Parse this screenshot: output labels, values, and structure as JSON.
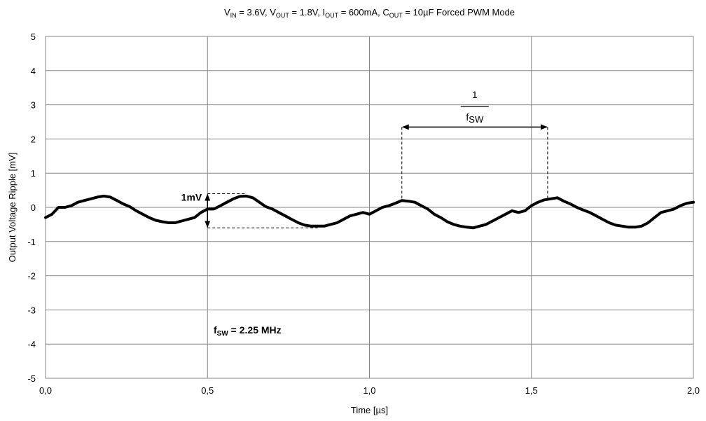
{
  "chart_data": {
    "type": "line",
    "title_parts": [
      {
        "text": "V",
        "sub": false
      },
      {
        "text": "IN",
        "sub": true
      },
      {
        "text": " = 3.6V, V",
        "sub": false
      },
      {
        "text": "OUT",
        "sub": true
      },
      {
        "text": " = 1.8V, I",
        "sub": false
      },
      {
        "text": "OUT",
        "sub": true
      },
      {
        "text": " = 600mA, C",
        "sub": false
      },
      {
        "text": "OUT",
        "sub": true
      },
      {
        "text": " = 10µF  Forced PWM Mode",
        "sub": false
      }
    ],
    "xlabel": "Time  [µs]",
    "ylabel": "Output Voltage Ripple  [mV]",
    "xlim": [
      0,
      2
    ],
    "ylim": [
      -5,
      5
    ],
    "x_ticks": [
      0,
      0.5,
      1.0,
      1.5,
      2.0
    ],
    "x_tick_labels": [
      "0,0",
      "0,5",
      "1,0",
      "1,5",
      "2,0"
    ],
    "y_ticks": [
      5,
      4,
      3,
      2,
      1,
      0,
      -1,
      -2,
      -3,
      -4,
      -5
    ],
    "y_tick_labels": [
      "5",
      "4",
      "3",
      "2",
      "1",
      "0",
      "-1",
      "-2",
      "-3",
      "-4",
      "-5"
    ],
    "x_grid": true,
    "y_grid": true,
    "series": [
      {
        "color": "#000000",
        "x": [
          0.0,
          0.02,
          0.04,
          0.06,
          0.08,
          0.1,
          0.12,
          0.14,
          0.16,
          0.18,
          0.2,
          0.22,
          0.24,
          0.26,
          0.28,
          0.3,
          0.32,
          0.34,
          0.36,
          0.38,
          0.4,
          0.42,
          0.44,
          0.46,
          0.48,
          0.5,
          0.52,
          0.54,
          0.56,
          0.58,
          0.6,
          0.62,
          0.64,
          0.66,
          0.68,
          0.7,
          0.72,
          0.74,
          0.76,
          0.78,
          0.8,
          0.82,
          0.84,
          0.86,
          0.88,
          0.9,
          0.92,
          0.94,
          0.96,
          0.98,
          1.0,
          1.02,
          1.04,
          1.06,
          1.08,
          1.1,
          1.12,
          1.14,
          1.16,
          1.18,
          1.2,
          1.22,
          1.24,
          1.26,
          1.28,
          1.3,
          1.32,
          1.34,
          1.36,
          1.38,
          1.4,
          1.42,
          1.44,
          1.46,
          1.48,
          1.5,
          1.52,
          1.54,
          1.56,
          1.58,
          1.6,
          1.62,
          1.64,
          1.66,
          1.68,
          1.7,
          1.72,
          1.74,
          1.76,
          1.78,
          1.8,
          1.82,
          1.84,
          1.86,
          1.88,
          1.9,
          1.92,
          1.94,
          1.96,
          1.98,
          2.0
        ],
        "y": [
          -0.3,
          -0.2,
          0.0,
          0.0,
          0.05,
          0.15,
          0.2,
          0.25,
          0.3,
          0.33,
          0.3,
          0.2,
          0.1,
          0.02,
          -0.1,
          -0.2,
          -0.3,
          -0.38,
          -0.42,
          -0.45,
          -0.45,
          -0.4,
          -0.35,
          -0.3,
          -0.15,
          -0.05,
          -0.05,
          0.05,
          0.15,
          0.25,
          0.32,
          0.33,
          0.28,
          0.15,
          0.02,
          -0.05,
          -0.15,
          -0.25,
          -0.35,
          -0.45,
          -0.52,
          -0.55,
          -0.55,
          -0.55,
          -0.5,
          -0.45,
          -0.35,
          -0.25,
          -0.2,
          -0.15,
          -0.2,
          -0.1,
          0.0,
          0.05,
          0.12,
          0.2,
          0.18,
          0.15,
          0.05,
          -0.05,
          -0.2,
          -0.3,
          -0.42,
          -0.5,
          -0.55,
          -0.58,
          -0.6,
          -0.55,
          -0.5,
          -0.4,
          -0.3,
          -0.2,
          -0.1,
          -0.15,
          -0.1,
          0.05,
          0.15,
          0.22,
          0.25,
          0.28,
          0.18,
          0.1,
          0.0,
          -0.08,
          -0.15,
          -0.25,
          -0.35,
          -0.45,
          -0.52,
          -0.55,
          -0.58,
          -0.58,
          -0.55,
          -0.45,
          -0.3,
          -0.15,
          -0.1,
          -0.05,
          0.05,
          0.12,
          0.15
        ]
      }
    ],
    "annotations": {
      "ripple_label": "1mV",
      "ripple_x": 0.5,
      "ripple_top": 0.4,
      "ripple_bottom": -0.6,
      "ripple_top_dash_to": 0.62,
      "ripple_bottom_dash_to": 0.84,
      "period_numerator": "1",
      "period_denominator_main": "f",
      "period_denominator_sub": "SW",
      "period_x_start": 1.1,
      "period_x_end": 1.55,
      "period_arrow_y": 2.35,
      "period_start_curve_y": 0.2,
      "period_end_curve_y": 0.25,
      "fsw_main": "f",
      "fsw_sub": "SW",
      "fsw_value": " = 2.25 MHz"
    }
  }
}
